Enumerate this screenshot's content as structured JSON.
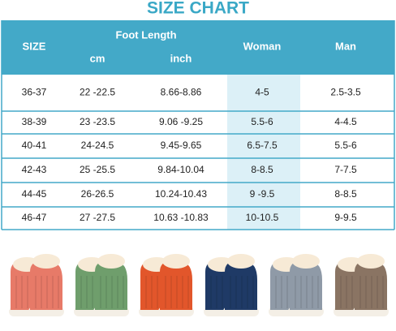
{
  "title": "SIZE CHART",
  "table": {
    "header": {
      "size": "SIZE",
      "foot_length": "Foot Length",
      "cm": "cm",
      "inch": "inch",
      "woman": "Woman",
      "man": "Man"
    },
    "rows": [
      [
        "36-37",
        "22 -22.5",
        "8.66-8.86",
        "4-5",
        "2.5-3.5"
      ],
      [
        "38-39",
        "23 -23.5",
        "9.06 -9.25",
        "5.5-6",
        "4-4.5"
      ],
      [
        "40-41",
        "24-24.5",
        "9.45-9.65",
        "6.5-7.5",
        "5.5-6"
      ],
      [
        "42-43",
        "25 -25.5",
        "9.84-10.04",
        "8-8.5",
        "7-7.5"
      ],
      [
        "44-45",
        "26-26.5",
        "10.24-10.43",
        "9 -9.5",
        "8-8.5"
      ],
      [
        "46-47",
        "27 -27.5",
        "10.63 -10.83",
        "10-10.5",
        "9-9.5"
      ]
    ]
  }
}
